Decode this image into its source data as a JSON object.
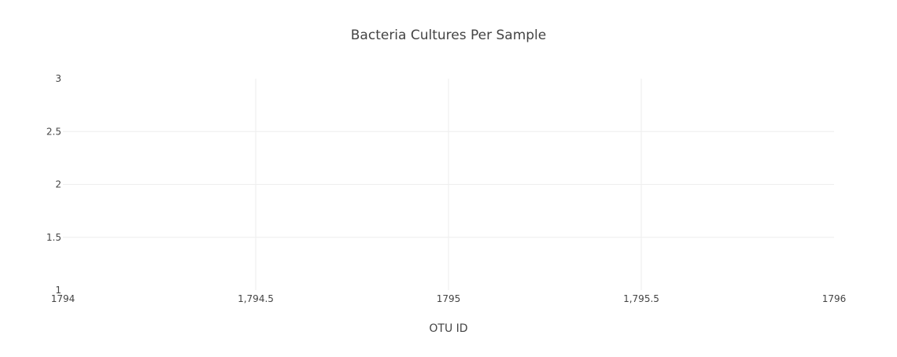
{
  "chart_data": {
    "type": "scatter",
    "title": "Bacteria Cultures Per Sample",
    "xlabel": "OTU ID",
    "ylabel": "",
    "xlim": [
      1794,
      1796
    ],
    "ylim": [
      1,
      3
    ],
    "x_ticks": [
      1794,
      1794.5,
      1795,
      1795.5,
      1796
    ],
    "x_tick_labels": [
      "1794",
      "1,794.5",
      "1795",
      "1,795.5",
      "1796"
    ],
    "y_ticks": [
      1,
      1.5,
      2,
      2.5,
      3
    ],
    "y_tick_labels": [
      "1",
      "1.5",
      "2",
      "2.5",
      "3"
    ],
    "grid": true,
    "series": [
      {
        "x": [],
        "y": []
      }
    ],
    "colors": {
      "text": "#444444",
      "grid": "#eeeeee",
      "background": "#ffffff"
    }
  }
}
